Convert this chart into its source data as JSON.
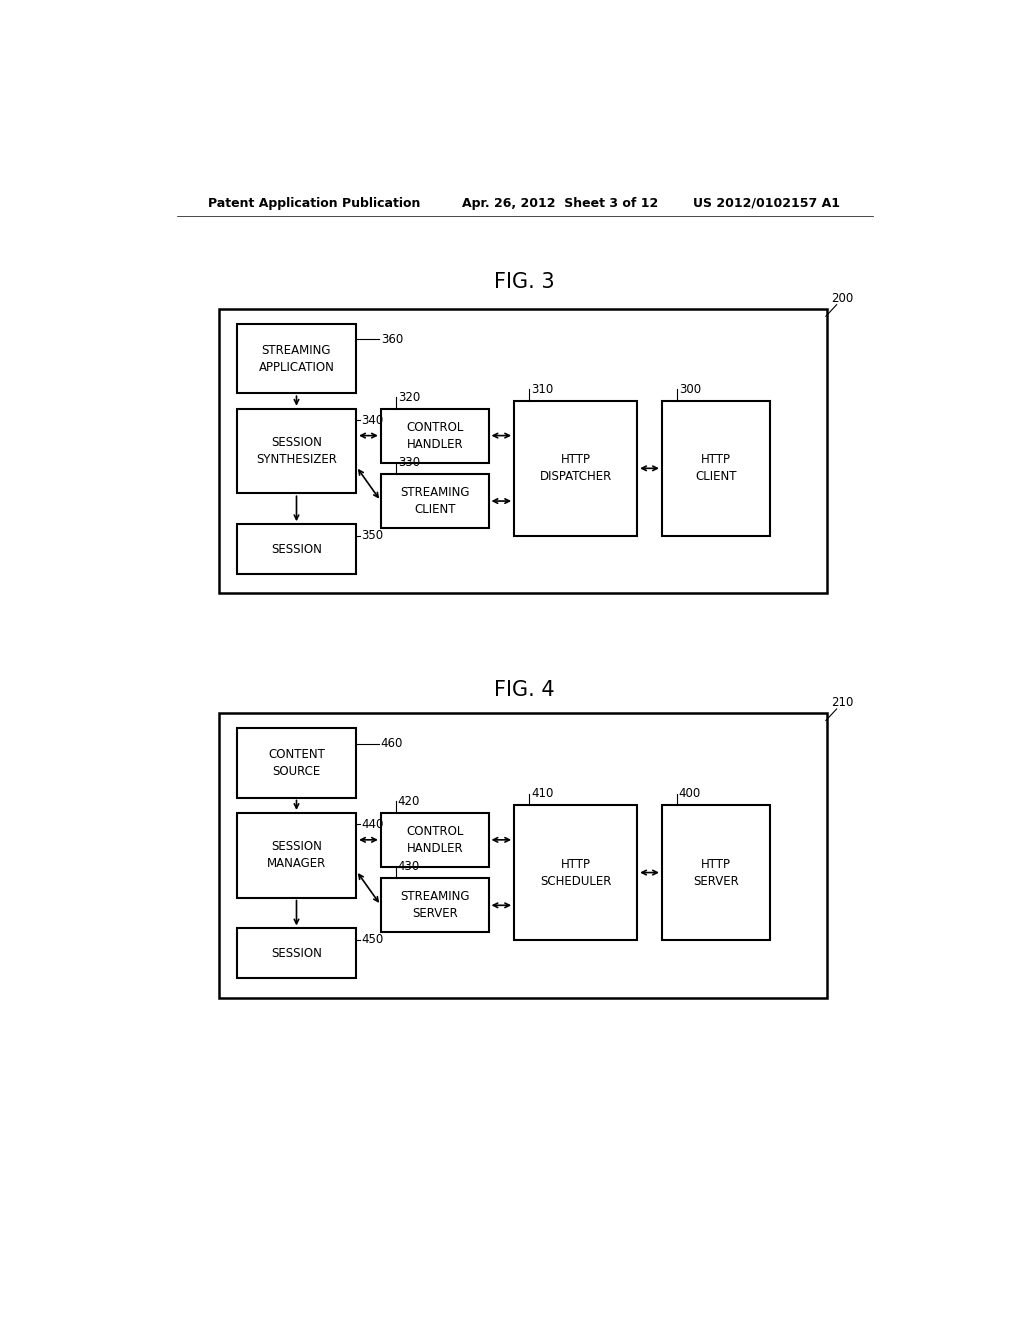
{
  "bg_color": "#ffffff",
  "header_left": "Patent Application Publication",
  "header_mid": "Apr. 26, 2012  Sheet 3 of 12",
  "header_right": "US 2012/0102157 A1",
  "fig3_title": "FIG. 3",
  "fig4_title": "FIG. 4",
  "fig3_ref": "200",
  "fig4_ref": "210"
}
